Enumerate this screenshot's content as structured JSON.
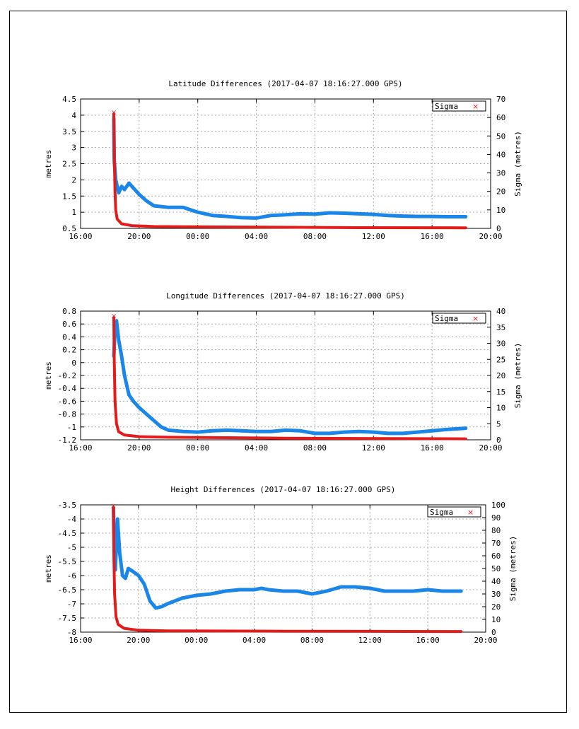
{
  "colors": {
    "series_primary": "#1a86e8",
    "series_sigma": "#e21b1b",
    "grid": "#aaaaaa",
    "axis": "#000000"
  },
  "chart_data": [
    {
      "type": "line",
      "title": "Latitude Differences (2017-04-07 18:16:27.000 GPS)",
      "ylabel": "metres",
      "y2label": "Sigma (metres)",
      "ylim": [
        0.5,
        4.5
      ],
      "yticks": [
        "4.5",
        "4",
        "3.5",
        "3",
        "2.5",
        "2",
        "1.5",
        "1",
        "0.5"
      ],
      "y2lim": [
        0,
        70
      ],
      "y2ticks": [
        "70",
        "60",
        "50",
        "40",
        "30",
        "20",
        "10",
        "0"
      ],
      "xticks": [
        "16:00",
        "20:00",
        "00:00",
        "04:00",
        "08:00",
        "12:00",
        "16:00",
        "20:00"
      ],
      "grid": true,
      "legend": {
        "label": "Sigma",
        "position": "top-right"
      },
      "series": [
        {
          "values": [
            [
              18.27,
              3.9
            ],
            [
              18.3,
              2.6
            ],
            [
              18.4,
              2.0
            ],
            [
              18.6,
              1.6
            ],
            [
              18.8,
              1.8
            ],
            [
              19.0,
              1.7
            ],
            [
              19.3,
              1.9
            ],
            [
              19.6,
              1.75
            ],
            [
              20.0,
              1.55
            ],
            [
              20.5,
              1.35
            ],
            [
              21.0,
              1.2
            ],
            [
              22.0,
              1.15
            ],
            [
              23.0,
              1.15
            ],
            [
              24.0,
              1.0
            ],
            [
              25.0,
              0.9
            ],
            [
              26.0,
              0.87
            ],
            [
              27.0,
              0.83
            ],
            [
              28.0,
              0.82
            ],
            [
              29.0,
              0.9
            ],
            [
              30.0,
              0.92
            ],
            [
              31.0,
              0.95
            ],
            [
              32.0,
              0.94
            ],
            [
              33.0,
              0.98
            ],
            [
              34.0,
              0.97
            ],
            [
              35.0,
              0.95
            ],
            [
              36.0,
              0.93
            ],
            [
              37.0,
              0.9
            ],
            [
              38.0,
              0.88
            ],
            [
              39.0,
              0.87
            ],
            [
              40.0,
              0.87
            ],
            [
              41.0,
              0.86
            ],
            [
              42.3,
              0.86
            ]
          ]
        },
        {
          "name": "Sigma",
          "axis": "y2",
          "values": [
            [
              18.27,
              62
            ],
            [
              18.3,
              40
            ],
            [
              18.35,
              20
            ],
            [
              18.4,
              10
            ],
            [
              18.5,
              5
            ],
            [
              18.8,
              2.5
            ],
            [
              19.5,
              1.5
            ],
            [
              21.0,
              1.0
            ],
            [
              25.0,
              0.8
            ],
            [
              30.0,
              0.6
            ],
            [
              35.0,
              0.4
            ],
            [
              42.3,
              0.3
            ]
          ]
        }
      ]
    },
    {
      "type": "line",
      "title": "Longitude Differences (2017-04-07 18:16:27.000 GPS)",
      "ylabel": "metres",
      "y2label": "Sigma (metres)",
      "ylim": [
        -1.2,
        0.8
      ],
      "yticks": [
        "0.8",
        "0.6",
        "0.4",
        "0.2",
        "0",
        "-0.2",
        "-0.4",
        "-0.6",
        "-0.8",
        "-1",
        "-1.2"
      ],
      "y2lim": [
        0,
        40
      ],
      "y2ticks": [
        "40",
        "35",
        "30",
        "25",
        "20",
        "15",
        "10",
        "5",
        "0"
      ],
      "xticks": [
        "16:00",
        "20:00",
        "00:00",
        "04:00",
        "08:00",
        "12:00",
        "16:00",
        "20:00"
      ],
      "grid": true,
      "legend": {
        "label": "Sigma",
        "position": "top-right"
      },
      "series": [
        {
          "values": [
            [
              18.27,
              0.1
            ],
            [
              18.35,
              0.5
            ],
            [
              18.45,
              0.65
            ],
            [
              18.6,
              0.35
            ],
            [
              18.8,
              0.1
            ],
            [
              19.0,
              -0.2
            ],
            [
              19.3,
              -0.5
            ],
            [
              19.6,
              -0.6
            ],
            [
              20.0,
              -0.7
            ],
            [
              20.5,
              -0.8
            ],
            [
              21.0,
              -0.9
            ],
            [
              21.5,
              -1.0
            ],
            [
              22.0,
              -1.05
            ],
            [
              23.0,
              -1.07
            ],
            [
              24.0,
              -1.08
            ],
            [
              25.0,
              -1.06
            ],
            [
              26.0,
              -1.05
            ],
            [
              27.0,
              -1.06
            ],
            [
              28.0,
              -1.07
            ],
            [
              29.0,
              -1.07
            ],
            [
              30.0,
              -1.05
            ],
            [
              31.0,
              -1.06
            ],
            [
              32.0,
              -1.1
            ],
            [
              33.0,
              -1.1
            ],
            [
              34.0,
              -1.08
            ],
            [
              35.0,
              -1.07
            ],
            [
              36.0,
              -1.08
            ],
            [
              37.0,
              -1.1
            ],
            [
              38.0,
              -1.1
            ],
            [
              39.0,
              -1.08
            ],
            [
              40.0,
              -1.06
            ],
            [
              41.0,
              -1.04
            ],
            [
              42.3,
              -1.02
            ]
          ]
        },
        {
          "name": "Sigma",
          "axis": "y2",
          "values": [
            [
              18.27,
              38
            ],
            [
              18.3,
              25
            ],
            [
              18.35,
              12
            ],
            [
              18.45,
              5
            ],
            [
              18.6,
              2.5
            ],
            [
              19.0,
              1.5
            ],
            [
              20.0,
              1.0
            ],
            [
              22.0,
              0.8
            ],
            [
              30.0,
              0.5
            ],
            [
              42.3,
              0.3
            ]
          ]
        }
      ]
    },
    {
      "type": "line",
      "title": "Height Differences (2017-04-07 18:16:27.000 GPS)",
      "ylabel": "metres",
      "y2label": "Sigma (metres)",
      "ylim": [
        -8,
        -3.5
      ],
      "yticks": [
        "-3.5",
        "-4",
        "-4.5",
        "-5",
        "-5.5",
        "-6",
        "-6.5",
        "-7",
        "-7.5",
        "-8"
      ],
      "y2lim": [
        0,
        100
      ],
      "y2ticks": [
        "100",
        "90",
        "80",
        "70",
        "60",
        "50",
        "40",
        "30",
        "20",
        "10",
        "0"
      ],
      "xticks": [
        "16:00",
        "20:00",
        "00:00",
        "04:00",
        "08:00",
        "12:00",
        "16:00",
        "20:00"
      ],
      "grid": true,
      "legend": {
        "label": "Sigma",
        "position": "top-right"
      },
      "series": [
        {
          "values": [
            [
              18.27,
              -3.6
            ],
            [
              18.3,
              -4.5
            ],
            [
              18.4,
              -5.8
            ],
            [
              18.55,
              -4.0
            ],
            [
              18.7,
              -5.2
            ],
            [
              18.9,
              -6.0
            ],
            [
              19.1,
              -6.1
            ],
            [
              19.3,
              -5.75
            ],
            [
              19.6,
              -5.85
            ],
            [
              20.0,
              -6.0
            ],
            [
              20.4,
              -6.3
            ],
            [
              20.8,
              -6.9
            ],
            [
              21.2,
              -7.15
            ],
            [
              21.6,
              -7.1
            ],
            [
              22.0,
              -7.0
            ],
            [
              23.0,
              -6.8
            ],
            [
              24.0,
              -6.7
            ],
            [
              25.0,
              -6.65
            ],
            [
              26.0,
              -6.55
            ],
            [
              27.0,
              -6.5
            ],
            [
              28.0,
              -6.5
            ],
            [
              28.5,
              -6.45
            ],
            [
              29.0,
              -6.5
            ],
            [
              30.0,
              -6.55
            ],
            [
              31.0,
              -6.55
            ],
            [
              32.0,
              -6.65
            ],
            [
              33.0,
              -6.55
            ],
            [
              34.0,
              -6.4
            ],
            [
              35.0,
              -6.4
            ],
            [
              36.0,
              -6.45
            ],
            [
              37.0,
              -6.55
            ],
            [
              38.0,
              -6.55
            ],
            [
              39.0,
              -6.55
            ],
            [
              40.0,
              -6.5
            ],
            [
              41.0,
              -6.55
            ],
            [
              42.3,
              -6.55
            ]
          ]
        },
        {
          "name": "Sigma",
          "axis": "y2",
          "values": [
            [
              18.27,
              98
            ],
            [
              18.3,
              60
            ],
            [
              18.35,
              30
            ],
            [
              18.45,
              12
            ],
            [
              18.6,
              6
            ],
            [
              19.0,
              3
            ],
            [
              20.0,
              1.5
            ],
            [
              22.0,
              1.0
            ],
            [
              30.0,
              0.7
            ],
            [
              42.3,
              0.5
            ]
          ]
        }
      ]
    }
  ]
}
